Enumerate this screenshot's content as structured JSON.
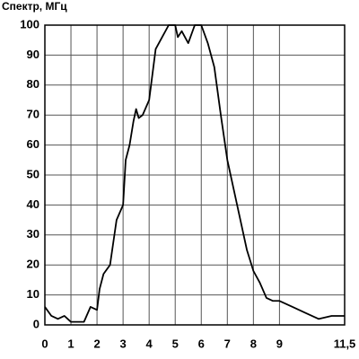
{
  "chart_data": {
    "type": "line",
    "title": "Спектр, МГц",
    "x": [
      0,
      0.25,
      0.5,
      0.75,
      1,
      1.25,
      1.5,
      1.75,
      2,
      2.1,
      2.25,
      2.5,
      2.75,
      3,
      3.1,
      3.25,
      3.4,
      3.5,
      3.6,
      3.75,
      4,
      4.25,
      4.5,
      4.75,
      5,
      5.1,
      5.25,
      5.5,
      5.75,
      6,
      6.25,
      6.5,
      6.75,
      7,
      7.25,
      7.5,
      7.75,
      8,
      8.25,
      8.5,
      8.75,
      9,
      9.5,
      10,
      10.5,
      11,
      11.5
    ],
    "series": [
      {
        "color": "#000000",
        "values": [
          6,
          3,
          2,
          3,
          1,
          1,
          1,
          6,
          5,
          12,
          17,
          20,
          35,
          40,
          55,
          60,
          68,
          72,
          69,
          70,
          75,
          92,
          96,
          100,
          100,
          96,
          98,
          94,
          100,
          100,
          94,
          86,
          70,
          55,
          45,
          35,
          25,
          18,
          14,
          9,
          8,
          8,
          6,
          4,
          2,
          3,
          3
        ]
      }
    ],
    "xlim": [
      0,
      11.5
    ],
    "ylim": [
      0,
      100
    ],
    "xticks": [
      0,
      1,
      2,
      3,
      4,
      5,
      6,
      7,
      8,
      9,
      {
        "value": 11.5,
        "label": "11,5"
      }
    ],
    "yticks": [
      0,
      10,
      20,
      30,
      40,
      50,
      60,
      70,
      80,
      90,
      100
    ],
    "grid": true
  }
}
